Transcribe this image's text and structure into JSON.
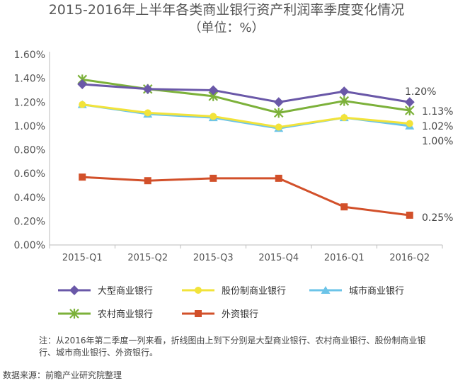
{
  "chart_data": {
    "type": "line",
    "title": "2015-2016年上半年各类商业银行资产利润率季度变化情况",
    "subtitle": "（单位：%）",
    "categories": [
      "2015-Q1",
      "2015-Q2",
      "2015-Q3",
      "2015-Q4",
      "2016-Q1",
      "2016-Q2"
    ],
    "y_ticks": [
      "0.00%",
      "0.20%",
      "0.40%",
      "0.60%",
      "0.80%",
      "1.00%",
      "1.20%",
      "1.40%",
      "1.60%"
    ],
    "ylim": [
      0,
      1.6
    ],
    "grid": false,
    "legend_position": "bottom",
    "series": [
      {
        "name": "大型商业银行",
        "values": [
          1.35,
          1.31,
          1.3,
          1.2,
          1.29,
          1.2
        ],
        "color": "#6a58a8",
        "marker": "diamond",
        "end_label": "1.20%"
      },
      {
        "name": "股份制商业银行",
        "values": [
          1.18,
          1.11,
          1.08,
          0.99,
          1.07,
          1.02
        ],
        "color": "#f2e33a",
        "marker": "circle",
        "end_label": "1.02%"
      },
      {
        "name": "城市商业银行",
        "values": [
          1.18,
          1.1,
          1.07,
          0.98,
          1.07,
          1.0
        ],
        "color": "#6cc4e8",
        "marker": "triangle",
        "end_label": "1.00%"
      },
      {
        "name": "农村商业银行",
        "values": [
          1.39,
          1.31,
          1.25,
          1.11,
          1.21,
          1.13
        ],
        "color": "#7cb13a",
        "marker": "asterisk",
        "end_label": "1.13%"
      },
      {
        "name": "外资银行",
        "values": [
          0.57,
          0.54,
          0.56,
          0.56,
          0.32,
          0.25
        ],
        "color": "#d2502a",
        "marker": "square",
        "end_label": "0.25%"
      }
    ]
  },
  "note": "注：从2016年第二季度一列来看，折线图由上到下分别是大型商业银行、农村商业银行、股份制商业银行、城市商业银行、外资银行。",
  "source": "数据来源：前瞻产业研究院整理"
}
